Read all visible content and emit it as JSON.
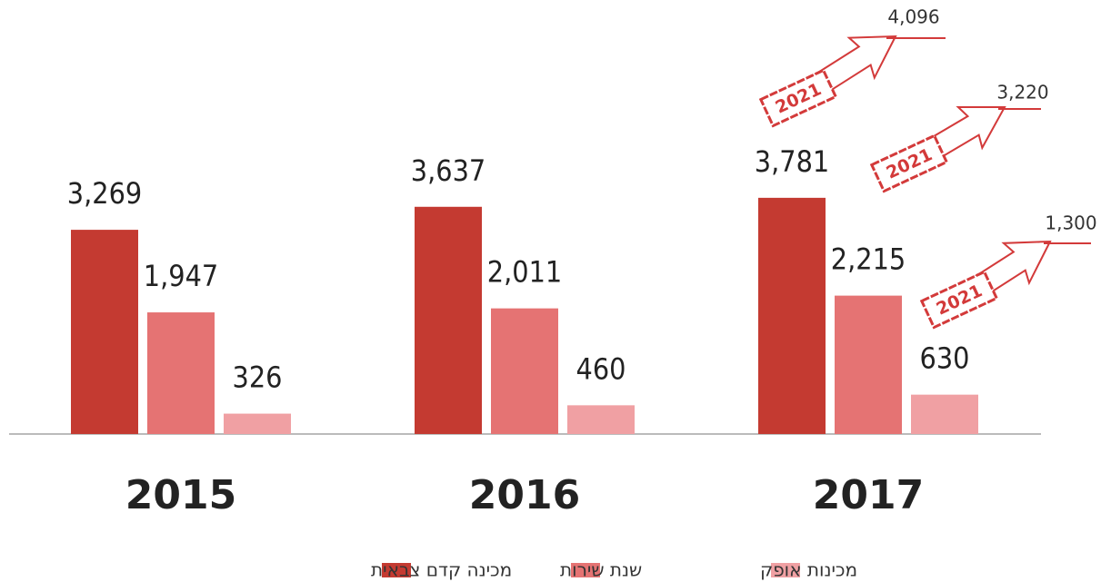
{
  "chart_data": {
    "type": "bar",
    "categories": [
      "2015",
      "2016",
      "2017"
    ],
    "series": [
      {
        "name": "מכינה קדם צבאית",
        "color": "#c43a31",
        "values": [
          3269,
          3637,
          3781
        ],
        "value_labels": [
          "3,269",
          "3,637",
          "3,781"
        ]
      },
      {
        "name": "שנת שירות",
        "color": "#e57373",
        "values": [
          1947,
          2011,
          2215
        ],
        "value_labels": [
          "1,947",
          "2,011",
          "2,215"
        ]
      },
      {
        "name": "מכינות אופק",
        "color": "#f0a0a3",
        "values": [
          326,
          460,
          630
        ],
        "value_labels": [
          "326",
          "460",
          "630"
        ]
      }
    ],
    "projection": {
      "label": "2021",
      "values": [
        4096,
        3220,
        1300
      ],
      "value_labels": [
        "4,096",
        "3,220",
        "1,300"
      ]
    }
  }
}
